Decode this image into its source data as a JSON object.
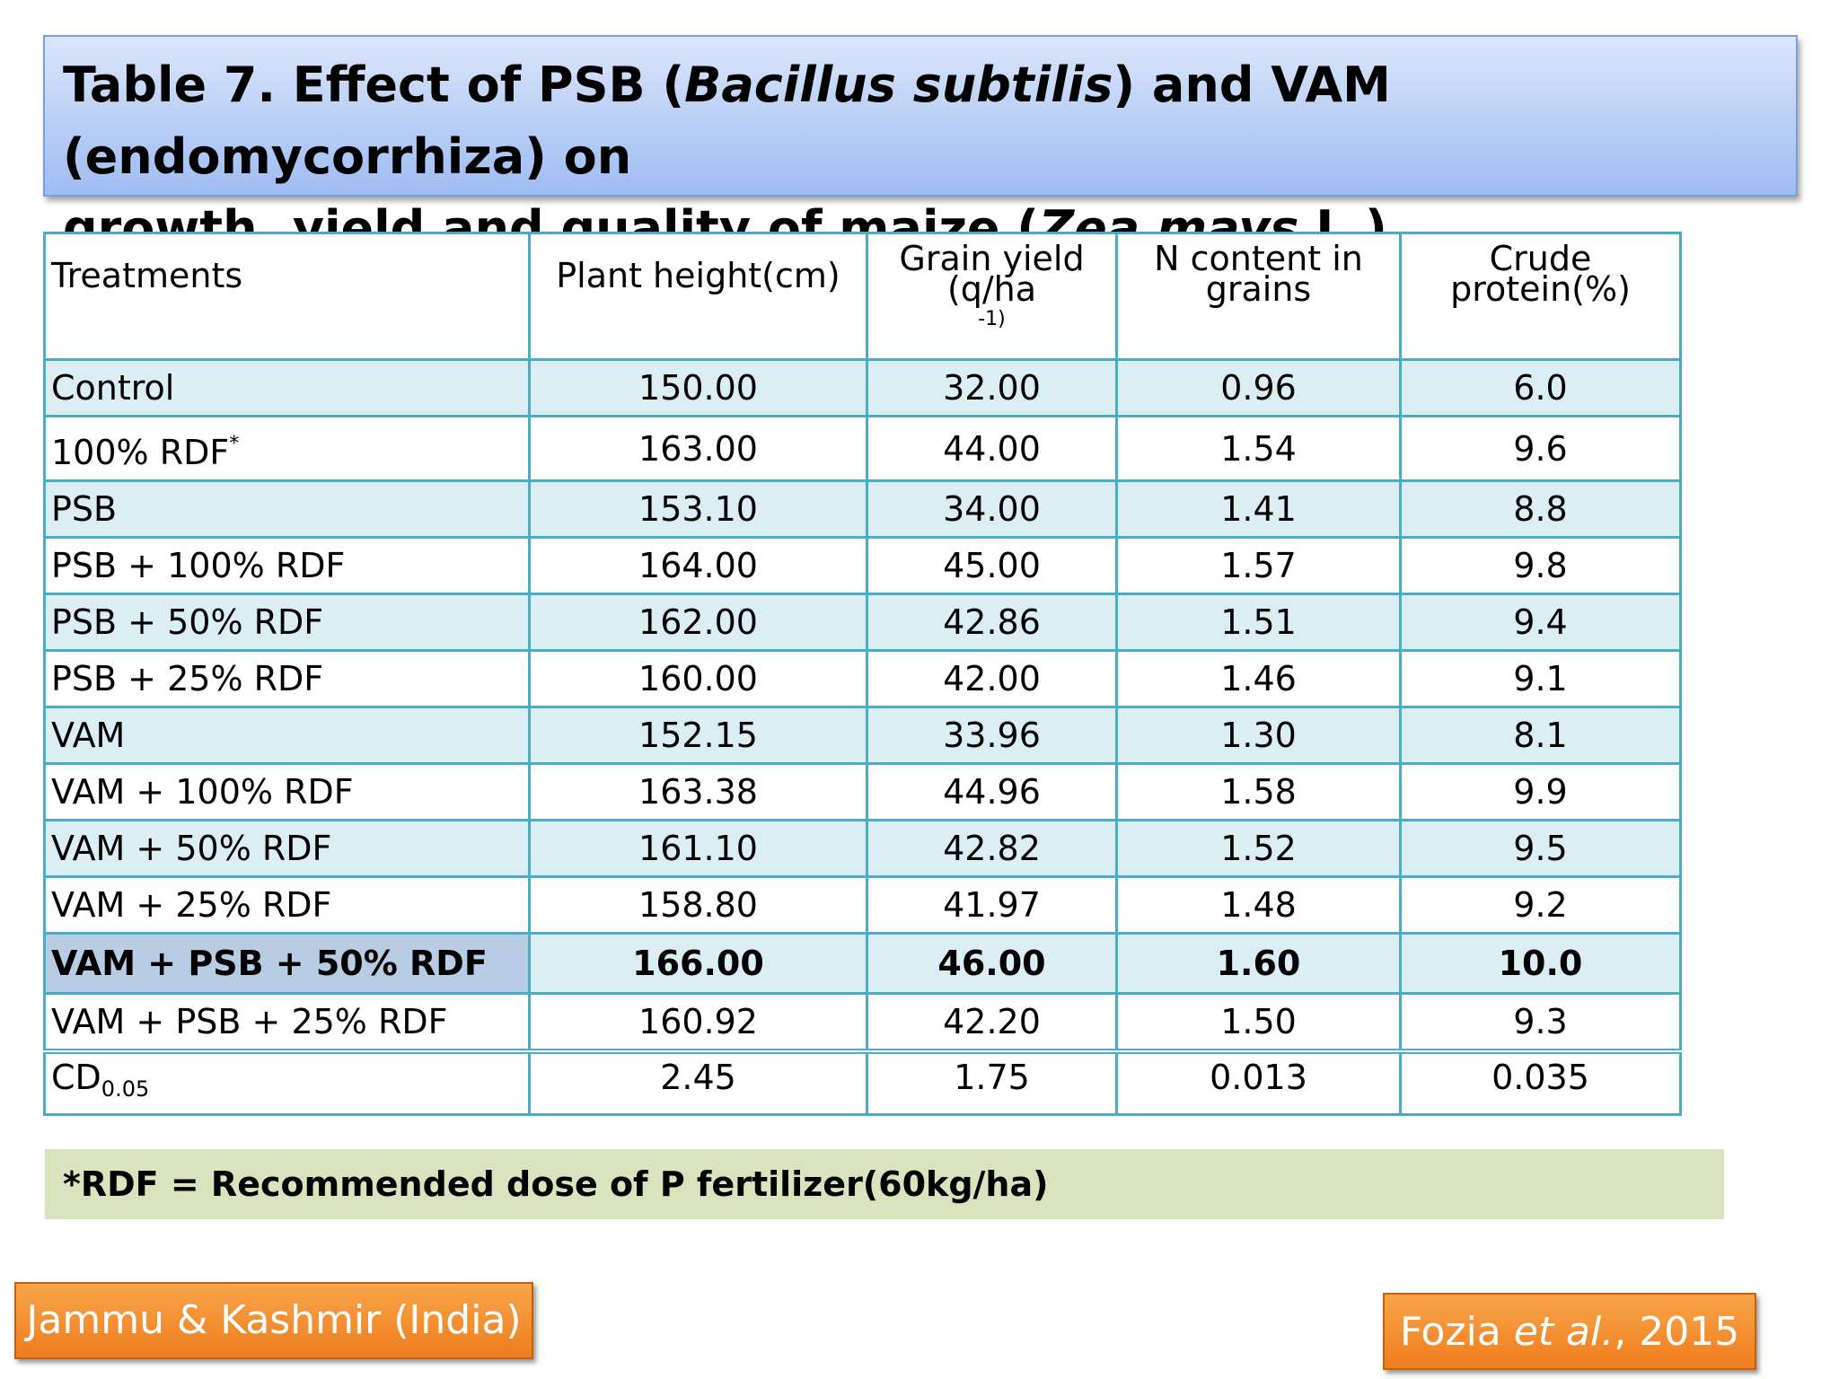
{
  "title": {
    "line1_a": "Table 7. Effect of PSB (",
    "line1_b": "Bacillus subtilis",
    "line1_c": ") and VAM (endomycorrhiza) on",
    "line2_a": "growth, yield and quality of maize (",
    "line2_b": "Zea mays",
    "line2_c": " L.)"
  },
  "table": {
    "headers": {
      "treatments": "Treatments",
      "plant_height": "Plant height(cm)",
      "grain_yield_l1": "Grain yield",
      "grain_yield_l2": "(q/ha",
      "grain_yield_sup": "-1)",
      "n_content_l1": "N content in",
      "n_content_l2": "grains",
      "crude_l1": "Crude",
      "crude_l2": "protein(%)"
    },
    "rows": [
      {
        "treatment": "Control",
        "height": "150.00",
        "yield": "32.00",
        "n": "0.96",
        "protein": "6.0"
      },
      {
        "treatment": "100%  RDF",
        "sup": "*",
        "height": "163.00",
        "yield": "44.00",
        "n": "1.54",
        "protein": "9.6"
      },
      {
        "treatment": "PSB",
        "height": "153.10",
        "yield": "34.00",
        "n": "1.41",
        "protein": "8.8"
      },
      {
        "treatment": "PSB + 100% RDF",
        "height": "164.00",
        "yield": "45.00",
        "n": "1.57",
        "protein": "9.8"
      },
      {
        "treatment": "PSB + 50% RDF",
        "height": "162.00",
        "yield": "42.86",
        "n": "1.51",
        "protein": "9.4"
      },
      {
        "treatment": "PSB + 25% RDF",
        "height": "160.00",
        "yield": "42.00",
        "n": "1.46",
        "protein": "9.1"
      },
      {
        "treatment": "VAM",
        "height": "152.15",
        "yield": "33.96",
        "n": "1.30",
        "protein": "8.1"
      },
      {
        "treatment": "VAM + 100% RDF",
        "height": "163.38",
        "yield": "44.96",
        "n": "1.58",
        "protein": "9.9"
      },
      {
        "treatment": "VAM + 50%  RDF",
        "height": "161.10",
        "yield": "42.82",
        "n": "1.52",
        "protein": "9.5"
      },
      {
        "treatment": "VAM + 25% RDF",
        "height": "158.80",
        "yield": "41.97",
        "n": "1.48",
        "protein": "9.2"
      },
      {
        "treatment": "VAM + PSB + 50% RDF",
        "height": "166.00",
        "yield": "46.00",
        "n": "1.60",
        "protein": "10.0"
      },
      {
        "treatment": "VAM + PSB + 25% RDF",
        "height": "160.92",
        "yield": "42.20",
        "n": "1.50",
        "protein": "9.3"
      }
    ],
    "cd": {
      "label": "CD",
      "sub": "0.05",
      "height": "2.45",
      "yield": "1.75",
      "n": "0.013",
      "protein": "0.035"
    }
  },
  "footnote": "*RDF = Recommended dose of P fertilizer(60kg/ha)",
  "location": "Jammu & Kashmir (India)",
  "citation": {
    "author": "Fozia ",
    "etal": "et al.",
    "year": ", 2015"
  },
  "colors": {
    "border": "#4bacc6",
    "band": "#daeef3",
    "highlight": "#b8cce4",
    "footnote_bg": "#d7e4bd",
    "badge": "#ee7d1e"
  }
}
